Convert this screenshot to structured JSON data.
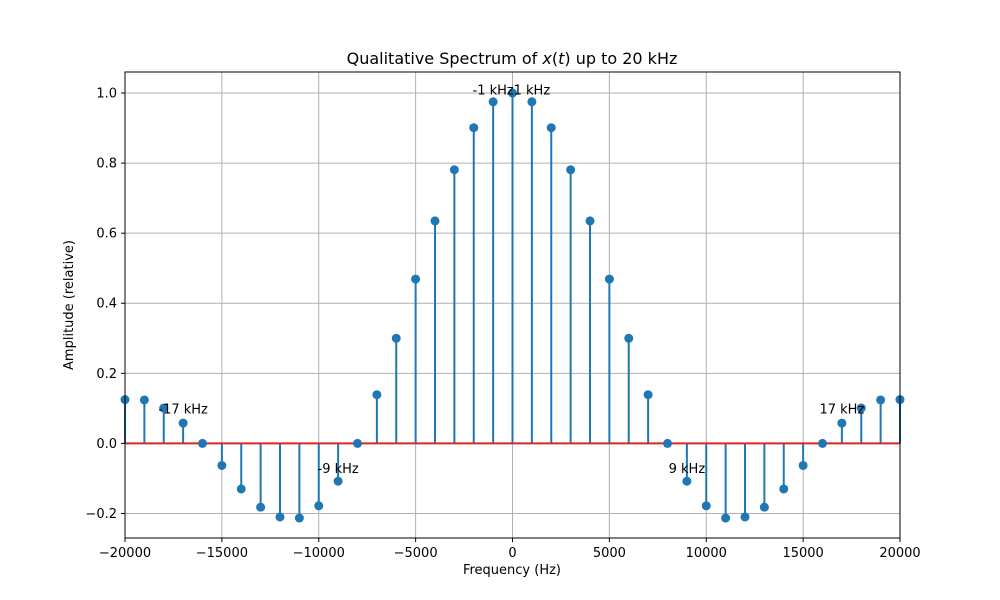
{
  "chart_data": {
    "type": "stem",
    "title": "Qualitative Spectrum of x(t) up to 20 kHz",
    "title_parts": [
      "Qualitative Spectrum of ",
      "x",
      "(",
      "t",
      ")",
      " up to 20 kHz"
    ],
    "xlabel": "Frequency (Hz)",
    "ylabel": "Amplitude (relative)",
    "xlim": [
      -20000,
      20000
    ],
    "ylim": [
      -0.27,
      1.06
    ],
    "grid": true,
    "xticks": [
      -20000,
      -15000,
      -10000,
      -5000,
      0,
      5000,
      10000,
      15000,
      20000
    ],
    "yticks": [
      -0.2,
      0.0,
      0.2,
      0.4,
      0.6,
      0.8,
      1.0
    ],
    "ytick_labels": [
      "−0.2",
      "0.0",
      "0.2",
      "0.4",
      "0.6",
      "0.8",
      "1.0"
    ],
    "xtick_labels": [
      "−20000",
      "−15000",
      "−10000",
      "−5000",
      "0",
      "5000",
      "10000",
      "15000",
      "20000"
    ],
    "x": [
      -20000,
      -19000,
      -18000,
      -17000,
      -16000,
      -15000,
      -14000,
      -13000,
      -12000,
      -11000,
      -10000,
      -9000,
      -8000,
      -7000,
      -6000,
      -5000,
      -4000,
      -3000,
      -2000,
      -1000,
      0,
      1000,
      2000,
      3000,
      4000,
      5000,
      6000,
      7000,
      8000,
      9000,
      10000,
      11000,
      12000,
      13000,
      14000,
      15000,
      16000,
      17000,
      18000,
      19000,
      20000
    ],
    "values": [
      0.125,
      0.124,
      0.101,
      0.058,
      0.0,
      -0.063,
      -0.13,
      -0.182,
      -0.21,
      -0.213,
      -0.178,
      -0.108,
      0.0,
      0.139,
      0.3,
      0.469,
      0.635,
      0.781,
      0.901,
      0.975,
      1.0,
      0.975,
      0.901,
      0.781,
      0.635,
      0.469,
      0.3,
      0.139,
      0.0,
      -0.108,
      -0.178,
      -0.213,
      -0.21,
      -0.182,
      -0.13,
      -0.063,
      0.0,
      0.058,
      0.101,
      0.124,
      0.125
    ],
    "baseline": 0.0,
    "annotations": [
      {
        "text": "-17 kHz",
        "x": -17000,
        "y": 0.1
      },
      {
        "text": "-9 kHz",
        "x": -9000,
        "y": -0.07
      },
      {
        "text": "-1 kHz",
        "x": -1000,
        "y": 1.01
      },
      {
        "text": "1 kHz",
        "x": 1000,
        "y": 1.01
      },
      {
        "text": "9 kHz",
        "x": 9000,
        "y": -0.07
      },
      {
        "text": "17 kHz",
        "x": 17000,
        "y": 0.1
      }
    ],
    "colors": {
      "stem": "#1f77b4",
      "marker": "#1f77b4",
      "baseline": "#d62728",
      "grid": "#b0b0b0",
      "axes": "#000000"
    }
  }
}
